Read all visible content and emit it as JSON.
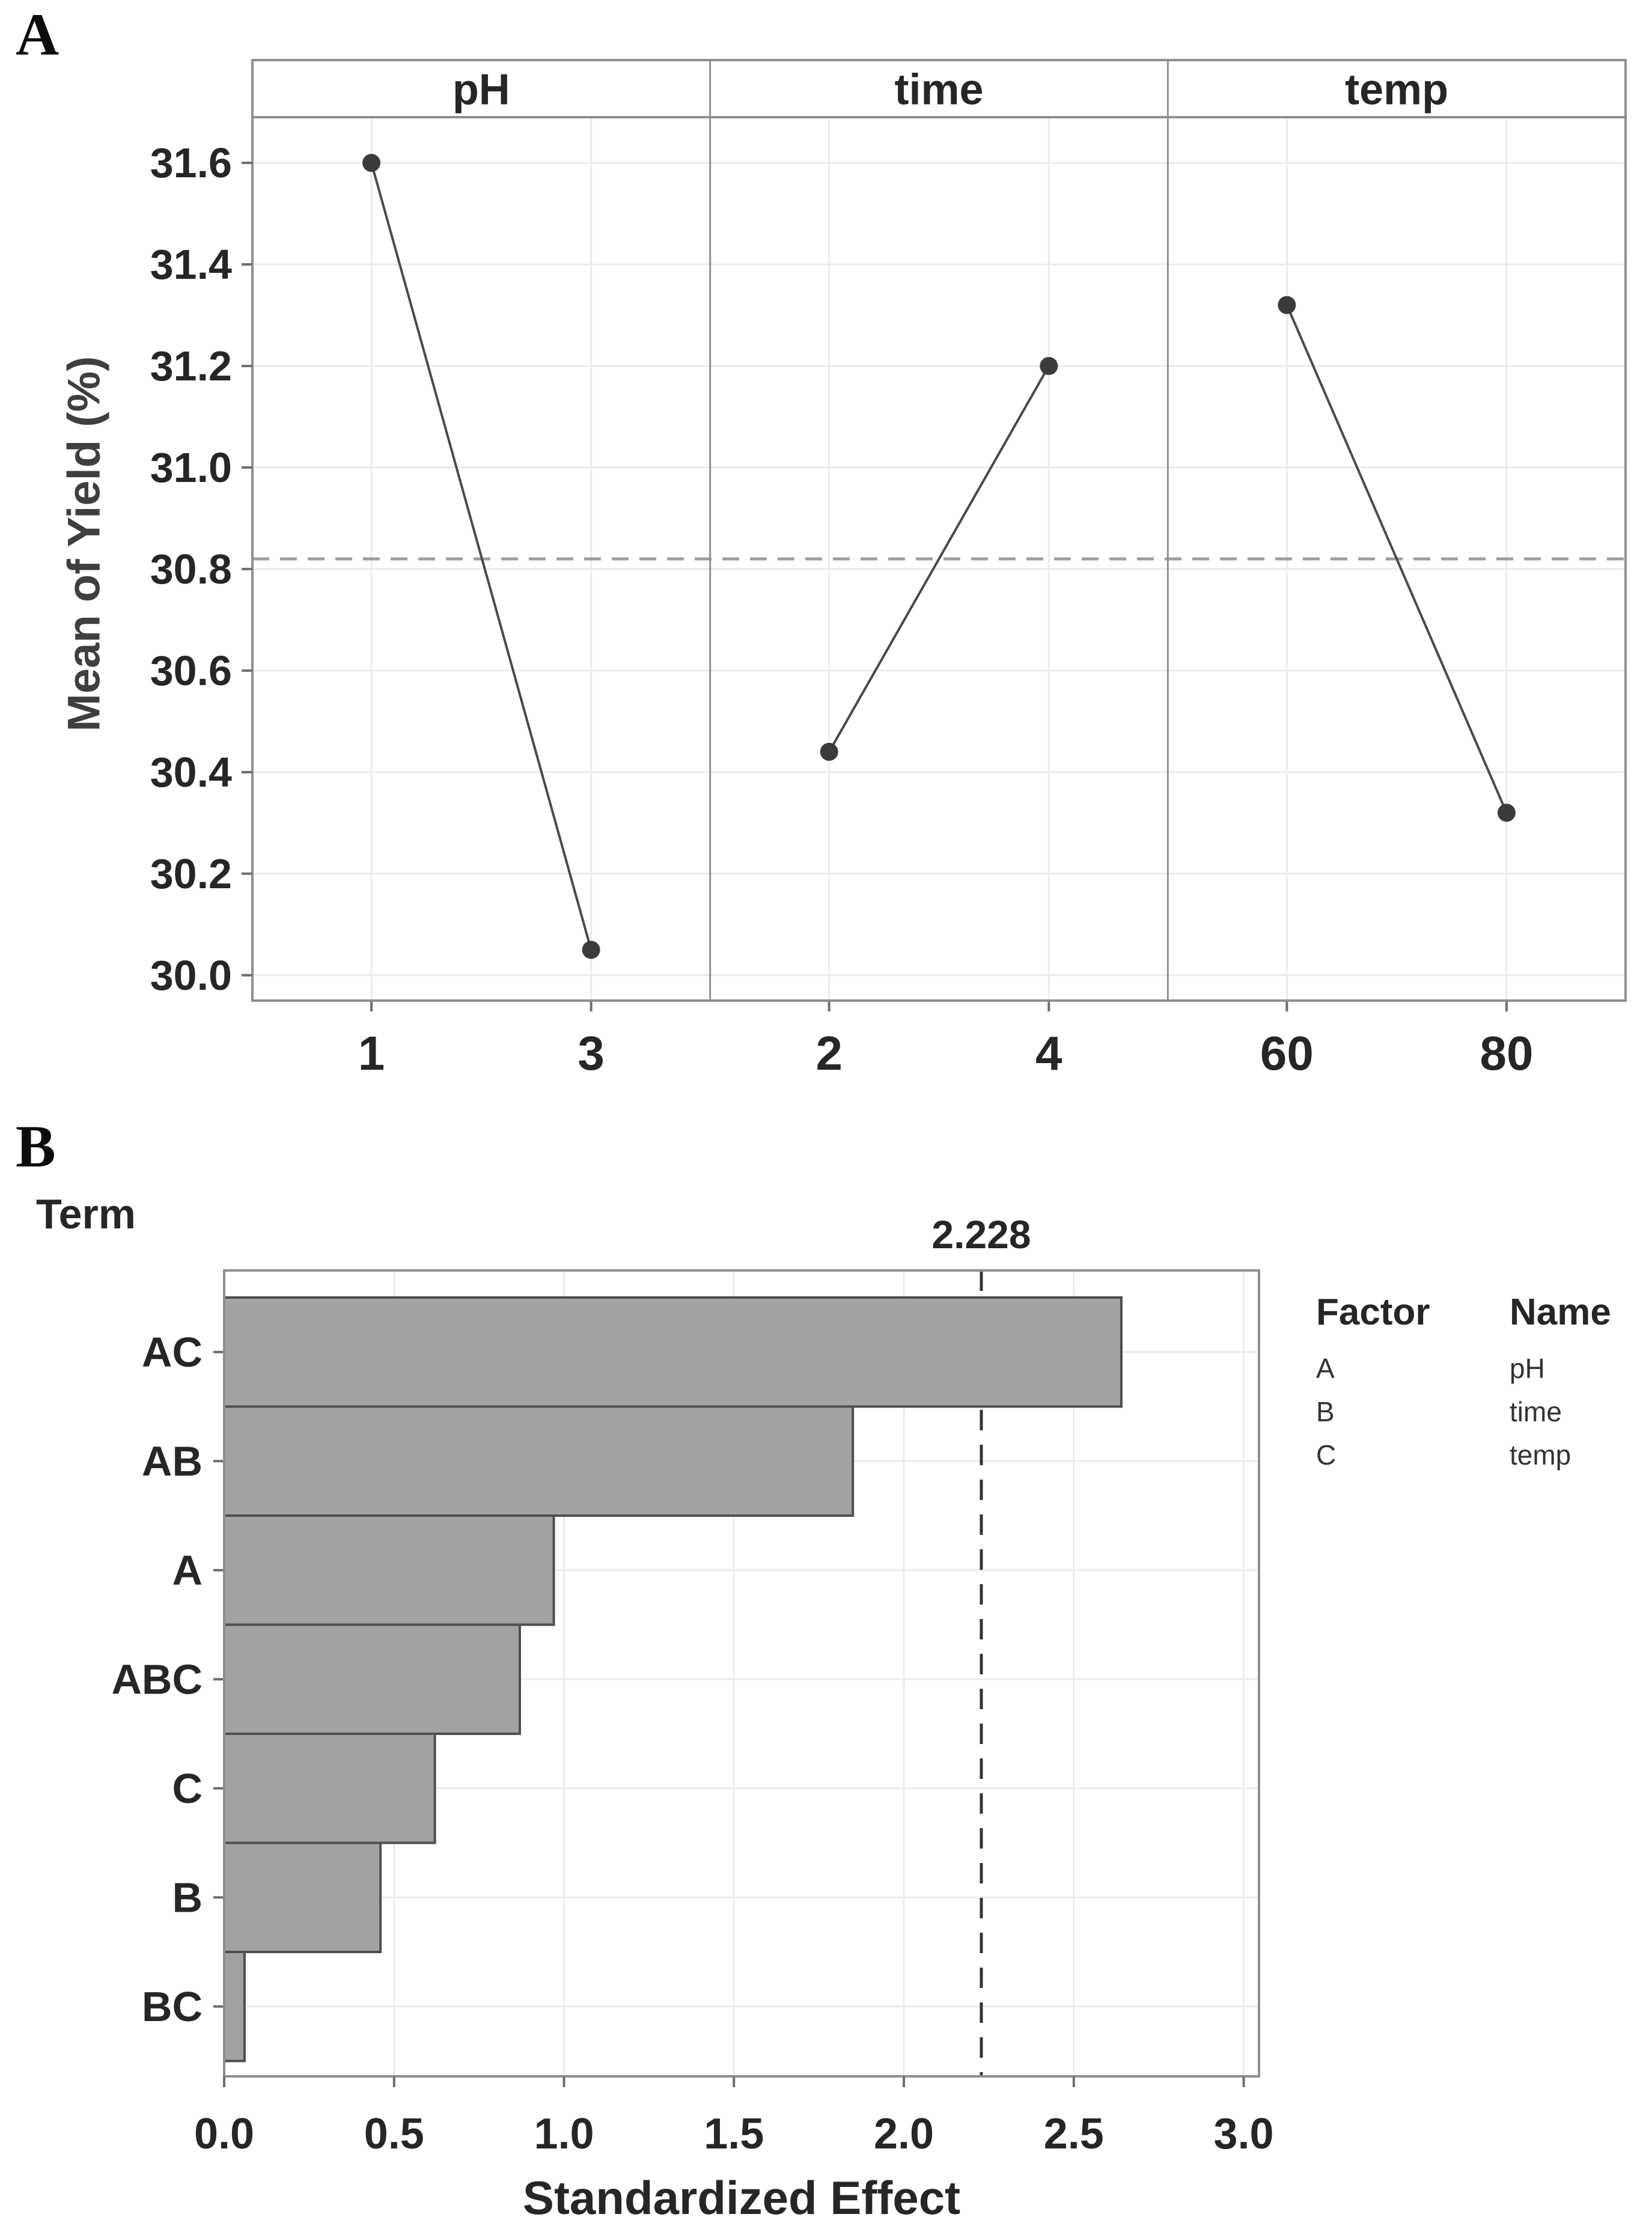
{
  "colors": {
    "text": "#262626",
    "muted_text": "#3f3f3f",
    "border": "#8f8f8f",
    "grid": "#ececec",
    "tick": "#6e6e6e",
    "point": "#3b3b3b",
    "series_line": "#4a4a4a",
    "mean_line": "#9e9e9e",
    "bar_fill": "#a2a2a2",
    "bar_stroke": "#4f4f4f",
    "ref_line": "#333333"
  },
  "chart_data": [
    {
      "id": "panel-a-main-effects",
      "type": "line",
      "panel_label": "A",
      "ylabel": "Mean of Yield (%)",
      "ylim": [
        29.95,
        31.69
      ],
      "y_ticks": [
        30.0,
        30.2,
        30.4,
        30.6,
        30.8,
        31.0,
        31.2,
        31.4,
        31.6
      ],
      "grand_mean": 30.82,
      "grid": true,
      "legend_position": "none",
      "facets": [
        {
          "title": "pH",
          "x_labels": [
            "1",
            "3"
          ],
          "values": [
            31.6,
            30.05
          ]
        },
        {
          "title": "time",
          "x_labels": [
            "2",
            "4"
          ],
          "values": [
            30.44,
            31.2
          ]
        },
        {
          "title": "temp",
          "x_labels": [
            "60",
            "80"
          ],
          "values": [
            31.32,
            30.32
          ]
        }
      ]
    },
    {
      "id": "panel-b-pareto",
      "type": "bar",
      "panel_label": "B",
      "term_axis_label": "Term",
      "xlabel": "Standardized Effect",
      "categories": [
        "AC",
        "AB",
        "A",
        "ABC",
        "C",
        "B",
        "BC"
      ],
      "values": [
        2.64,
        1.85,
        0.97,
        0.87,
        0.62,
        0.46,
        0.06
      ],
      "x_ticks": [
        0.0,
        0.5,
        1.0,
        1.5,
        2.0,
        2.5,
        3.0
      ],
      "xlim": [
        0,
        3.045
      ],
      "grid": true,
      "reference_line": 2.228,
      "reference_label": "2.228",
      "legend_position": "right",
      "legend": {
        "headers": [
          "Factor",
          "Name"
        ],
        "rows": [
          [
            "A",
            "pH"
          ],
          [
            "B",
            "time"
          ],
          [
            "C",
            "temp"
          ]
        ]
      }
    }
  ]
}
